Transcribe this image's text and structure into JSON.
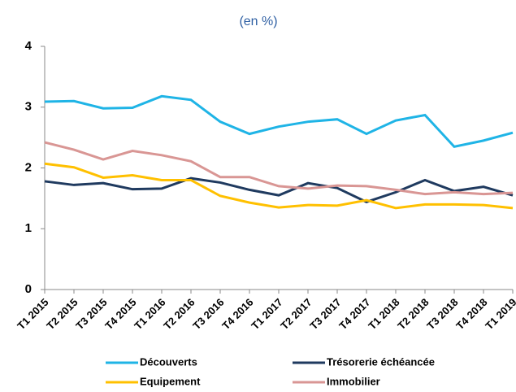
{
  "chart_data": {
    "type": "line",
    "subtitle": "(en %)",
    "categories": [
      "T1 2015",
      "T2 2015",
      "T3 2015",
      "T4 2015",
      "T1 2016",
      "T2 2016",
      "T3 2016",
      "T4 2016",
      "T1 2017",
      "T2 2017",
      "T3 2017",
      "T4 2017",
      "T1 2018",
      "T2 2018",
      "T3 2018",
      "T4 2018",
      "T1 2019"
    ],
    "series": [
      {
        "name": "Découverts",
        "color": "#1fb4e6",
        "values": [
          3.09,
          3.1,
          2.98,
          2.99,
          3.18,
          3.12,
          2.76,
          2.56,
          2.68,
          2.76,
          2.8,
          2.56,
          2.78,
          2.87,
          2.35,
          2.45,
          2.58
        ]
      },
      {
        "name": "Trésorerie échéancée",
        "color": "#1f3a5f",
        "values": [
          1.78,
          1.72,
          1.75,
          1.65,
          1.66,
          1.83,
          1.76,
          1.64,
          1.55,
          1.75,
          1.67,
          1.44,
          1.6,
          1.8,
          1.62,
          1.69,
          1.55
        ]
      },
      {
        "name": "Equipement",
        "color": "#ffc000",
        "values": [
          2.07,
          2.01,
          1.84,
          1.88,
          1.8,
          1.8,
          1.54,
          1.43,
          1.35,
          1.39,
          1.38,
          1.47,
          1.34,
          1.4,
          1.4,
          1.39,
          1.34
        ]
      },
      {
        "name": "Immobilier",
        "color": "#d99694",
        "values": [
          2.42,
          2.3,
          2.14,
          2.28,
          2.21,
          2.11,
          1.85,
          1.85,
          1.7,
          1.66,
          1.71,
          1.7,
          1.64,
          1.57,
          1.6,
          1.57,
          1.59
        ]
      }
    ],
    "ylim": [
      0,
      4
    ],
    "yticks": [
      0,
      1,
      2,
      3,
      4
    ],
    "grid": false,
    "legend": "bottom"
  }
}
